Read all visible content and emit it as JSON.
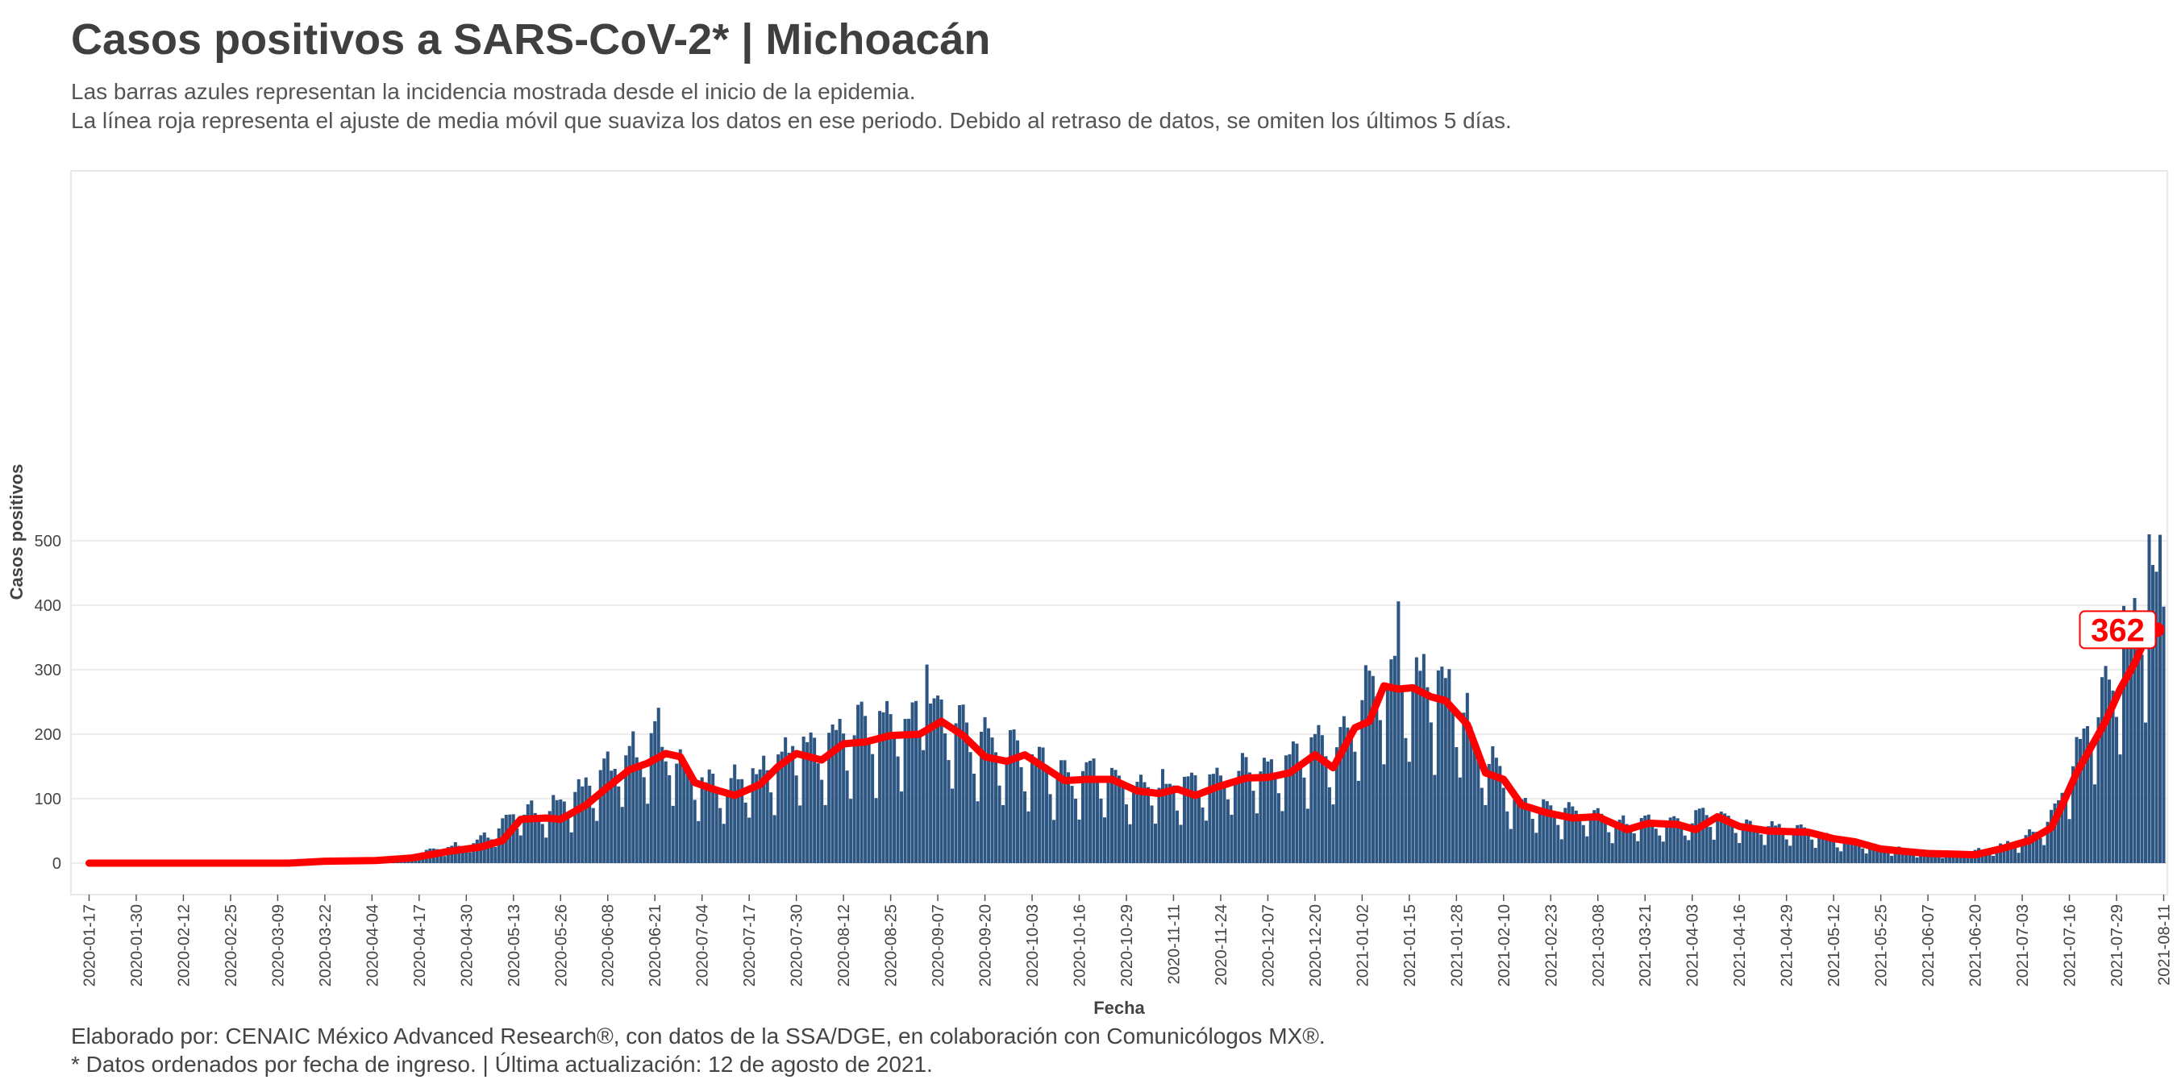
{
  "title": "Casos positivos a SARS-CoV-2* | Michoacán",
  "subtitle_line1": "Las barras azules representan la incidencia mostrada desde el inicio de la epidemia.",
  "subtitle_line2": "La línea roja representa el ajuste de media móvil que suaviza los datos en ese periodo. Debido al retraso de datos, se omiten los últimos 5 días.",
  "caption_line1": "Elaborado por: CENAIC México Advanced Research®, con datos de la SSA/DGE, en colaboración con Comunicólogos MX®.",
  "caption_line2": "* Datos ordenados por fecha de ingreso. | Última actualización: 12 de agosto de 2021.",
  "colors": {
    "bars": "#2d5683",
    "line": "#ff0000",
    "grid": "#e6e6e6"
  },
  "chart_data": {
    "type": "bar",
    "xlabel": "Fecha",
    "ylabel": "Casos positivos",
    "ylim": [
      0,
      520
    ],
    "yticks": [
      0,
      100,
      200,
      300,
      400,
      500
    ],
    "x_range": [
      "2020-01-12",
      "2021-08-12"
    ],
    "xtick_labels": [
      "2020-01-17",
      "2020-01-30",
      "2020-02-12",
      "2020-02-25",
      "2020-03-09",
      "2020-03-22",
      "2020-04-04",
      "2020-04-17",
      "2020-04-30",
      "2020-05-13",
      "2020-05-26",
      "2020-06-08",
      "2020-06-21",
      "2020-07-04",
      "2020-07-17",
      "2020-07-30",
      "2020-08-12",
      "2020-08-25",
      "2020-09-07",
      "2020-09-20",
      "2020-10-03",
      "2020-10-16",
      "2020-10-29",
      "2020-11-11",
      "2020-11-24",
      "2020-12-07",
      "2020-12-20",
      "2021-01-02",
      "2021-01-15",
      "2021-01-28",
      "2021-02-10",
      "2021-02-23",
      "2021-03-08",
      "2021-03-21",
      "2021-04-03",
      "2021-04-16",
      "2021-04-29",
      "2021-05-12",
      "2021-05-25",
      "2021-06-07",
      "2021-06-20",
      "2021-07-03",
      "2021-07-16",
      "2021-07-29",
      "2021-08-11"
    ],
    "series": [
      {
        "kind": "bars",
        "start_date": "2020-01-17",
        "end_date": "2021-08-11",
        "keypoints": [
          [
            "2020-01-17",
            0
          ],
          [
            "2020-03-10",
            0
          ],
          [
            "2020-03-20",
            1
          ],
          [
            "2020-03-31",
            3
          ],
          [
            "2020-04-12",
            8
          ],
          [
            "2020-04-22",
            20
          ],
          [
            "2020-05-03",
            30
          ],
          [
            "2020-05-13",
            70
          ],
          [
            "2020-05-22",
            75
          ],
          [
            "2020-06-01",
            105
          ],
          [
            "2020-06-10",
            140
          ],
          [
            "2020-06-20",
            170
          ],
          [
            "2020-06-26",
            160
          ],
          [
            "2020-07-02",
            120
          ],
          [
            "2020-07-10",
            108
          ],
          [
            "2020-07-20",
            130
          ],
          [
            "2020-07-30",
            170
          ],
          [
            "2020-08-06",
            165
          ],
          [
            "2020-08-14",
            190
          ],
          [
            "2020-08-22",
            200
          ],
          [
            "2020-09-01",
            205
          ],
          [
            "2020-09-07",
            220
          ],
          [
            "2020-09-15",
            190
          ],
          [
            "2020-09-24",
            160
          ],
          [
            "2020-10-03",
            150
          ],
          [
            "2020-10-13",
            125
          ],
          [
            "2020-10-22",
            135
          ],
          [
            "2020-11-01",
            108
          ],
          [
            "2020-11-11",
            112
          ],
          [
            "2020-11-21",
            115
          ],
          [
            "2020-12-01",
            132
          ],
          [
            "2020-12-10",
            135
          ],
          [
            "2020-12-20",
            165
          ],
          [
            "2020-12-25",
            155
          ],
          [
            "2020-12-31",
            215
          ],
          [
            "2021-01-05",
            260
          ],
          [
            "2021-01-10",
            270
          ],
          [
            "2021-01-15",
            270
          ],
          [
            "2021-01-22",
            255
          ],
          [
            "2021-01-28",
            235
          ],
          [
            "2021-02-03",
            170
          ],
          [
            "2021-02-08",
            130
          ],
          [
            "2021-02-14",
            88
          ],
          [
            "2021-02-24",
            75
          ],
          [
            "2021-03-04",
            72
          ],
          [
            "2021-03-12",
            58
          ],
          [
            "2021-03-22",
            58
          ],
          [
            "2021-04-01",
            58
          ],
          [
            "2021-04-07",
            70
          ],
          [
            "2021-04-15",
            58
          ],
          [
            "2021-04-25",
            50
          ],
          [
            "2021-05-05",
            45
          ],
          [
            "2021-05-15",
            32
          ],
          [
            "2021-05-25",
            22
          ],
          [
            "2021-06-04",
            17
          ],
          [
            "2021-06-14",
            13
          ],
          [
            "2021-06-24",
            20
          ],
          [
            "2021-07-04",
            35
          ],
          [
            "2021-07-10",
            60
          ],
          [
            "2021-07-17",
            140
          ],
          [
            "2021-07-23",
            220
          ],
          [
            "2021-07-28",
            260
          ],
          [
            "2021-08-02",
            310
          ],
          [
            "2021-08-06",
            400
          ],
          [
            "2021-08-11",
            410
          ]
        ],
        "peaks": [
          [
            "2021-01-12",
            406
          ],
          [
            "2021-08-07",
            510
          ],
          [
            "2020-06-22",
            241
          ],
          [
            "2020-09-04",
            308
          ],
          [
            "2021-07-31",
            399
          ]
        ]
      },
      {
        "kind": "line",
        "start_date": "2020-01-17",
        "end_date": "2021-08-11",
        "points": [
          [
            "2020-01-17",
            0
          ],
          [
            "2020-03-12",
            0
          ],
          [
            "2020-03-22",
            3
          ],
          [
            "2020-04-05",
            4
          ],
          [
            "2020-04-15",
            8
          ],
          [
            "2020-04-25",
            18
          ],
          [
            "2020-05-04",
            25
          ],
          [
            "2020-05-10",
            35
          ],
          [
            "2020-05-15",
            68
          ],
          [
            "2020-05-22",
            70
          ],
          [
            "2020-05-26",
            68
          ],
          [
            "2020-06-02",
            90
          ],
          [
            "2020-06-08",
            118
          ],
          [
            "2020-06-14",
            145
          ],
          [
            "2020-06-19",
            155
          ],
          [
            "2020-06-24",
            170
          ],
          [
            "2020-06-28",
            165
          ],
          [
            "2020-07-02",
            125
          ],
          [
            "2020-07-07",
            115
          ],
          [
            "2020-07-13",
            105
          ],
          [
            "2020-07-20",
            122
          ],
          [
            "2020-07-25",
            150
          ],
          [
            "2020-07-30",
            170
          ],
          [
            "2020-08-06",
            160
          ],
          [
            "2020-08-12",
            185
          ],
          [
            "2020-08-18",
            188
          ],
          [
            "2020-08-25",
            198
          ],
          [
            "2020-09-02",
            200
          ],
          [
            "2020-09-08",
            220
          ],
          [
            "2020-09-14",
            198
          ],
          [
            "2020-09-20",
            165
          ],
          [
            "2020-09-26",
            158
          ],
          [
            "2020-10-01",
            168
          ],
          [
            "2020-10-06",
            150
          ],
          [
            "2020-10-12",
            128
          ],
          [
            "2020-10-18",
            130
          ],
          [
            "2020-10-25",
            130
          ],
          [
            "2020-11-01",
            112
          ],
          [
            "2020-11-07",
            108
          ],
          [
            "2020-11-12",
            115
          ],
          [
            "2020-11-17",
            105
          ],
          [
            "2020-11-23",
            118
          ],
          [
            "2020-12-01",
            132
          ],
          [
            "2020-12-07",
            133
          ],
          [
            "2020-12-13",
            140
          ],
          [
            "2020-12-20",
            168
          ],
          [
            "2020-12-25",
            148
          ],
          [
            "2020-12-31",
            210
          ],
          [
            "2021-01-04",
            220
          ],
          [
            "2021-01-08",
            275
          ],
          [
            "2021-01-12",
            270
          ],
          [
            "2021-01-16",
            272
          ],
          [
            "2021-01-21",
            258
          ],
          [
            "2021-01-25",
            252
          ],
          [
            "2021-01-31",
            215
          ],
          [
            "2021-02-05",
            140
          ],
          [
            "2021-02-10",
            130
          ],
          [
            "2021-02-15",
            90
          ],
          [
            "2021-02-22",
            78
          ],
          [
            "2021-03-01",
            70
          ],
          [
            "2021-03-08",
            72
          ],
          [
            "2021-03-16",
            52
          ],
          [
            "2021-03-22",
            62
          ],
          [
            "2021-03-30",
            60
          ],
          [
            "2021-04-04",
            52
          ],
          [
            "2021-04-10",
            72
          ],
          [
            "2021-04-16",
            57
          ],
          [
            "2021-04-24",
            50
          ],
          [
            "2021-05-05",
            48
          ],
          [
            "2021-05-12",
            38
          ],
          [
            "2021-05-18",
            33
          ],
          [
            "2021-05-25",
            22
          ],
          [
            "2021-06-01",
            18
          ],
          [
            "2021-06-07",
            15
          ],
          [
            "2021-06-14",
            14
          ],
          [
            "2021-06-20",
            13
          ],
          [
            "2021-06-27",
            22
          ],
          [
            "2021-07-05",
            35
          ],
          [
            "2021-07-11",
            55
          ],
          [
            "2021-07-14",
            90
          ],
          [
            "2021-07-18",
            140
          ],
          [
            "2021-07-22",
            180
          ],
          [
            "2021-07-26",
            220
          ],
          [
            "2021-07-30",
            270
          ],
          [
            "2021-08-03",
            310
          ],
          [
            "2021-08-07",
            362
          ]
        ]
      }
    ],
    "last_value_label": "362"
  }
}
